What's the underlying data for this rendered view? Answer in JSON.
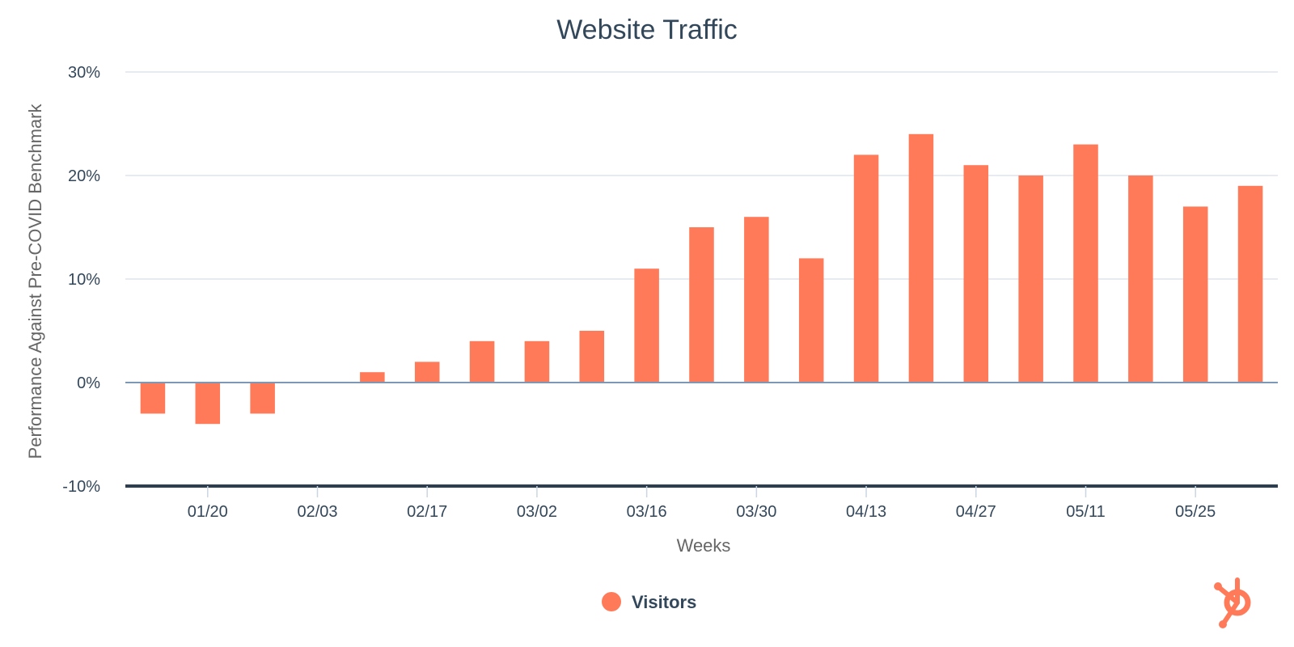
{
  "chart_data": {
    "type": "bar",
    "title": "Website Traffic",
    "xlabel": "Weeks",
    "ylabel": "Performance Against Pre-COVID Benchmark",
    "ylim": [
      -10,
      30
    ],
    "yticks": [
      30,
      20,
      10,
      0,
      -10
    ],
    "ytick_labels": [
      "30%",
      "20%",
      "10%",
      "0%",
      "-10%"
    ],
    "xtick_labels": [
      "01/20",
      "02/03",
      "02/17",
      "03/02",
      "03/16",
      "03/30",
      "04/13",
      "04/27",
      "05/11",
      "05/25"
    ],
    "xtick_positions": [
      1.5,
      3.5,
      5.5,
      7.5,
      9.5,
      11.5,
      13.5,
      15.5,
      17.5,
      19.5
    ],
    "grid": true,
    "legend_position": "bottom-center",
    "series": [
      {
        "name": "Visitors",
        "color": "#ff7a59",
        "values": [
          -3,
          -4,
          -3,
          0,
          1,
          2,
          4,
          4,
          5,
          11,
          15,
          16,
          12,
          22,
          24,
          21,
          20,
          23,
          20,
          17,
          19
        ]
      }
    ]
  },
  "logo": {
    "icon": "hubspot-sprocket-icon",
    "color": "#ff7a59"
  }
}
